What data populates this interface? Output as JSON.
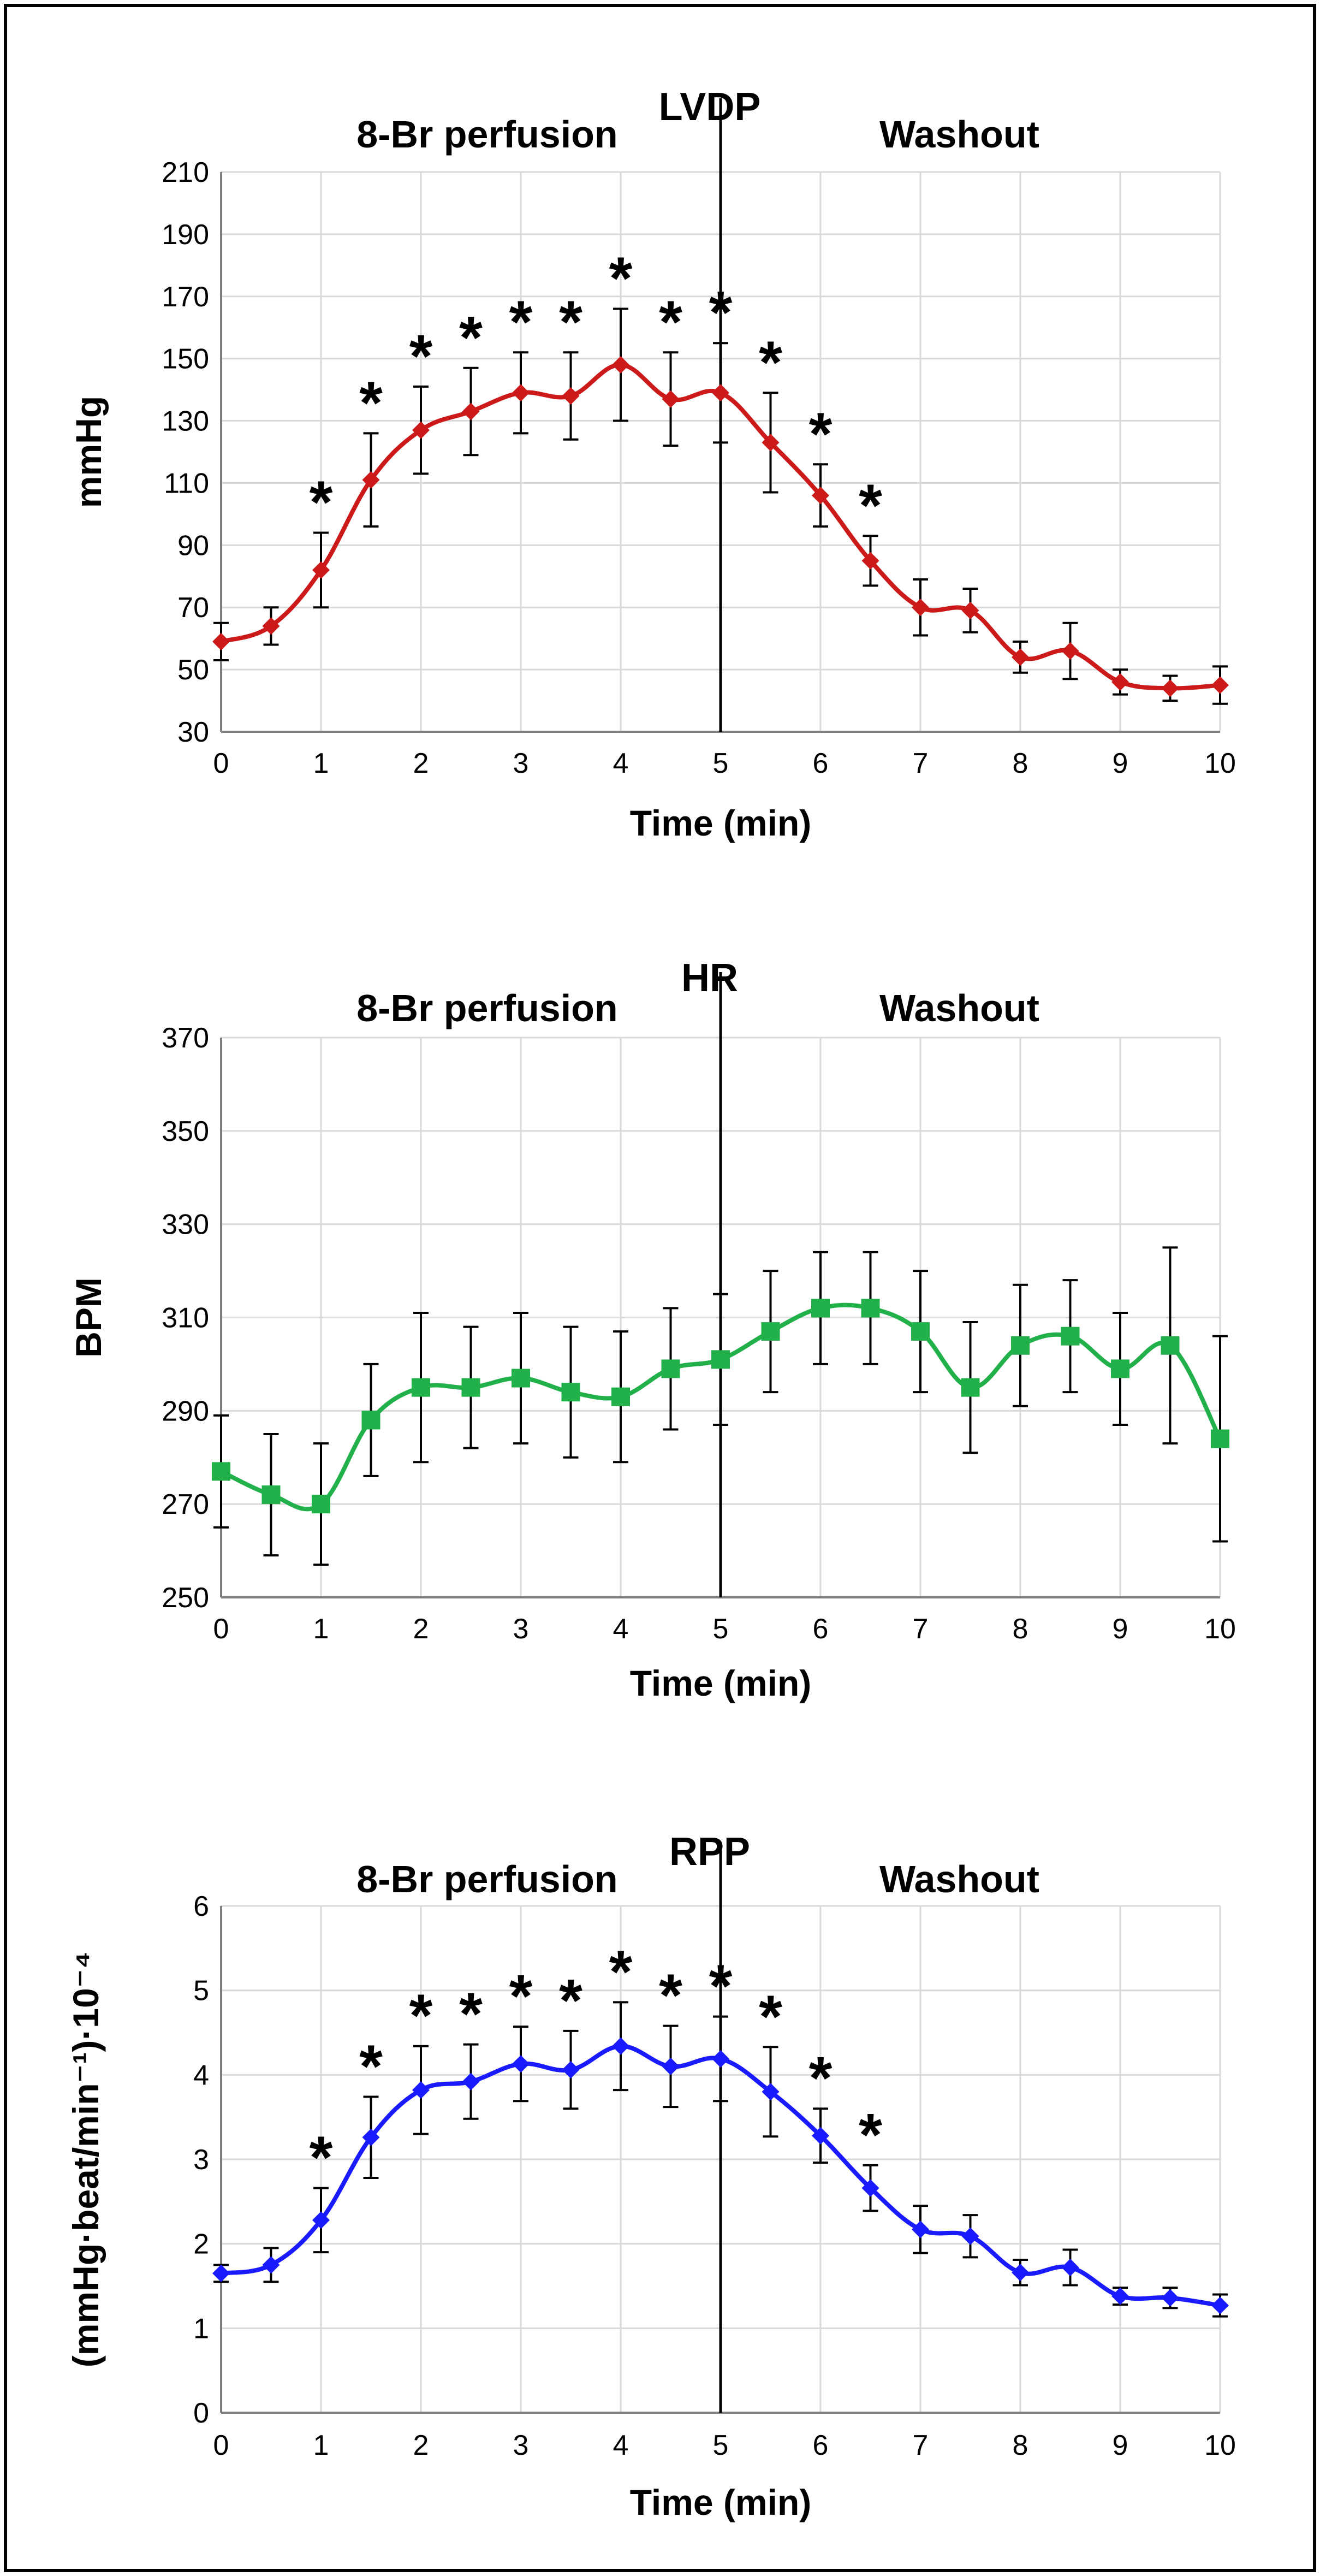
{
  "colors": {
    "lvdp": "#cc1a1a",
    "hr": "#22b04a",
    "rpp": "#1a1aff",
    "grid": "#d9d9d9",
    "axis": "#000000"
  },
  "chart_data": [
    {
      "id": "lvdp",
      "type": "line",
      "title": "LVDP",
      "left_label": "8-Br perfusion",
      "right_label": "Washout",
      "xlabel": "Time (min)",
      "ylabel": "mmHg",
      "ylim": [
        30,
        210
      ],
      "yticks": [
        "30",
        "50",
        "70",
        "90",
        "110",
        "130",
        "150",
        "170",
        "190",
        "210"
      ],
      "xlim": [
        0,
        10
      ],
      "xticks": [
        "0",
        "1",
        "2",
        "3",
        "4",
        "5",
        "6",
        "7",
        "8",
        "9",
        "10"
      ],
      "divider_x": 5,
      "marker": "diamond",
      "series": [
        {
          "name": "LVDP",
          "x": [
            0,
            0.5,
            1,
            1.5,
            2,
            2.5,
            3,
            3.5,
            4,
            4.5,
            5,
            5.5,
            6,
            6.5,
            7,
            7.5,
            8,
            8.5,
            9,
            9.5,
            10
          ],
          "values": [
            59,
            64,
            82,
            111,
            127,
            133,
            139,
            138,
            148,
            137,
            139,
            123,
            106,
            85,
            70,
            69,
            54,
            56,
            46,
            44,
            45
          ],
          "errors": [
            6,
            6,
            12,
            15,
            14,
            14,
            13,
            14,
            18,
            15,
            16,
            16,
            10,
            8,
            9,
            7,
            5,
            9,
            4,
            4,
            6
          ]
        }
      ],
      "significance": [
        {
          "x": 1,
          "label": "*"
        },
        {
          "x": 1.5,
          "label": "*"
        },
        {
          "x": 2,
          "label": "*"
        },
        {
          "x": 2.5,
          "label": "*"
        },
        {
          "x": 3,
          "label": "*"
        },
        {
          "x": 3.5,
          "label": "*"
        },
        {
          "x": 4,
          "label": "*"
        },
        {
          "x": 4.5,
          "label": "*"
        },
        {
          "x": 5,
          "label": "*"
        },
        {
          "x": 5.5,
          "label": "*"
        },
        {
          "x": 6,
          "label": "*"
        },
        {
          "x": 6.5,
          "label": "*"
        }
      ]
    },
    {
      "id": "hr",
      "type": "line",
      "title": "HR",
      "left_label": "8-Br perfusion",
      "right_label": "Washout",
      "xlabel": "Time (min)",
      "ylabel": "BPM",
      "ylim": [
        250,
        370
      ],
      "yticks": [
        "250",
        "270",
        "290",
        "310",
        "330",
        "350",
        "370"
      ],
      "xlim": [
        0,
        10
      ],
      "xticks": [
        "0",
        "1",
        "2",
        "3",
        "4",
        "5",
        "6",
        "7",
        "8",
        "9",
        "10"
      ],
      "divider_x": 5,
      "marker": "square",
      "series": [
        {
          "name": "HR",
          "x": [
            0,
            0.5,
            1,
            1.5,
            2,
            2.5,
            3,
            3.5,
            4,
            4.5,
            5,
            5.5,
            6,
            6.5,
            7,
            7.5,
            8,
            8.5,
            9,
            9.5,
            10
          ],
          "values": [
            277,
            272,
            270,
            288,
            295,
            295,
            297,
            294,
            293,
            299,
            301,
            307,
            312,
            312,
            307,
            295,
            304,
            306,
            299,
            304,
            284
          ],
          "errors": [
            12,
            13,
            13,
            12,
            16,
            13,
            14,
            14,
            14,
            13,
            14,
            13,
            12,
            12,
            13,
            14,
            13,
            12,
            12,
            21,
            22
          ]
        }
      ],
      "significance": []
    },
    {
      "id": "rpp",
      "type": "line",
      "title": "RPP",
      "left_label": "8-Br perfusion",
      "right_label": "Washout",
      "xlabel": "Time (min)",
      "ylabel": "(mmHg·beat/min⁻¹)·10⁻⁴",
      "ylim": [
        0,
        6
      ],
      "yticks": [
        "0",
        "1",
        "2",
        "3",
        "4",
        "5",
        "6"
      ],
      "xlim": [
        0,
        10
      ],
      "xticks": [
        "0",
        "1",
        "2",
        "3",
        "4",
        "5",
        "6",
        "7",
        "8",
        "9",
        "10"
      ],
      "divider_x": 5,
      "marker": "diamond",
      "series": [
        {
          "name": "RPP",
          "x": [
            0,
            0.5,
            1,
            1.5,
            2,
            2.5,
            3,
            3.5,
            4,
            4.5,
            5,
            5.5,
            6,
            6.5,
            7,
            7.5,
            8,
            8.5,
            9,
            9.5,
            10
          ],
          "values": [
            1.65,
            1.75,
            2.28,
            3.26,
            3.82,
            3.92,
            4.13,
            4.06,
            4.34,
            4.1,
            4.19,
            3.8,
            3.28,
            2.66,
            2.17,
            2.09,
            1.66,
            1.72,
            1.38,
            1.36,
            1.27
          ],
          "errors": [
            0.1,
            0.2,
            0.38,
            0.48,
            0.52,
            0.44,
            0.44,
            0.46,
            0.52,
            0.48,
            0.5,
            0.53,
            0.32,
            0.27,
            0.28,
            0.25,
            0.15,
            0.21,
            0.1,
            0.12,
            0.13
          ]
        }
      ],
      "significance": [
        {
          "x": 1,
          "label": "*"
        },
        {
          "x": 1.5,
          "label": "*"
        },
        {
          "x": 2,
          "label": "*"
        },
        {
          "x": 2.5,
          "label": "*"
        },
        {
          "x": 3,
          "label": "*"
        },
        {
          "x": 3.5,
          "label": "*"
        },
        {
          "x": 4,
          "label": "*"
        },
        {
          "x": 4.5,
          "label": "*"
        },
        {
          "x": 5,
          "label": "*"
        },
        {
          "x": 5.5,
          "label": "*"
        },
        {
          "x": 6,
          "label": "*"
        },
        {
          "x": 6.5,
          "label": "*"
        }
      ]
    }
  ]
}
